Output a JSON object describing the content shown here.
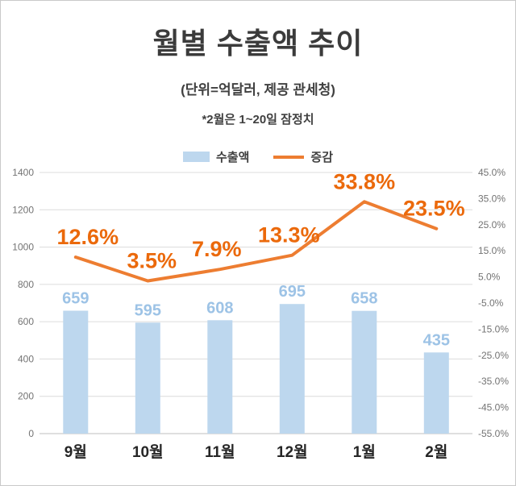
{
  "chart_data": {
    "type": "bar",
    "title": "월별 수출액 추이",
    "subtitle": "(단위=억달러, 제공 관세청)",
    "note": "*2월은 1~20일 잠정치",
    "categories": [
      "9월",
      "10월",
      "11월",
      "12월",
      "1월",
      "2월"
    ],
    "series": [
      {
        "name": "수출액",
        "type": "bar",
        "axis": "left",
        "color": "#BDD7EE",
        "label_color": "#9DC3E6",
        "values": [
          659,
          595,
          608,
          695,
          658,
          435
        ]
      },
      {
        "name": "증감",
        "type": "line",
        "axis": "right",
        "color": "#ED7D31",
        "label_color": "#EB690B",
        "values": [
          12.6,
          3.5,
          7.9,
          13.3,
          33.8,
          23.5
        ],
        "value_labels": [
          "12.6%",
          "3.5%",
          "7.9%",
          "13.3%",
          "33.8%",
          "23.5%"
        ]
      }
    ],
    "left_axis": {
      "min": 0,
      "max": 1400,
      "ticks": [
        "1400",
        "1200",
        "1000",
        "800",
        "600",
        "400",
        "200",
        "0"
      ]
    },
    "right_axis": {
      "min": -55,
      "max": 45,
      "ticks": [
        "45.0%",
        "35.0%",
        "25.0%",
        "15.0%",
        "5.0%",
        "-5.0%",
        "-15.0%",
        "-25.0%",
        "-35.0%",
        "-45.0%",
        "-55.0%"
      ]
    },
    "grid": true,
    "legend_position": "top"
  }
}
